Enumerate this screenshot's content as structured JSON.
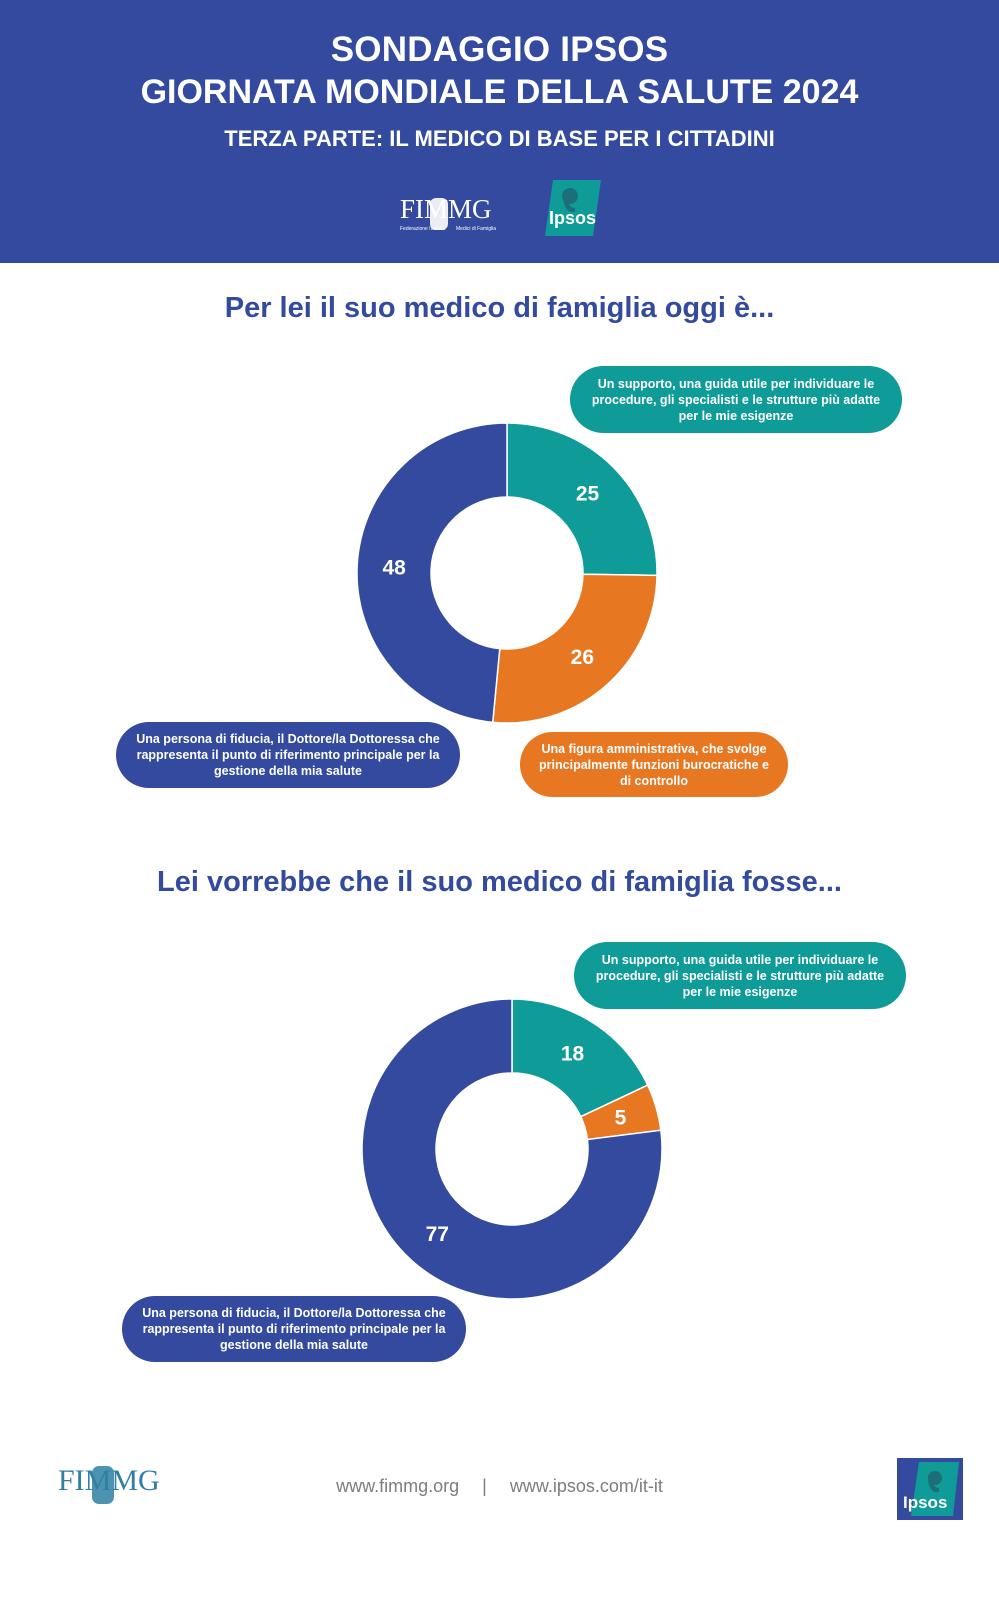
{
  "header": {
    "line1": "SONDAGGIO IPSOS",
    "line2": "GIORNATA MONDIALE DELLA SALUTE 2024",
    "line3": "TERZA PARTE: IL MEDICO DI BASE PER I CITTADINI",
    "fimmg_logo": "FIMMG",
    "fimmg_sub_left": "Federazione Italiana",
    "fimmg_sub_right": "Medici di Famiglia",
    "ipsos_logo": "Ipsos"
  },
  "colors": {
    "header_bg": "#334a9e",
    "blue": "#334a9e",
    "teal": "#0f9b98",
    "orange": "#e87722"
  },
  "section1": {
    "title": "Per lei il suo medico di famiglia oggi è...",
    "bubble_teal": "Un supporto, una guida utile per individuare le procedure, gli specialisti e le strutture più adatte per le mie esigenze",
    "bubble_blue": "Una persona di fiducia, il Dottore/la Dottoressa che rappresenta il punto di riferimento principale per la gestione della mia salute",
    "bubble_orange": "Una figura amministrativa, che svolge principalmente funzioni burocratiche e di controllo"
  },
  "section2": {
    "title": "Lei vorrebbe che il suo medico di famiglia fosse...",
    "bubble_teal": "Un supporto, una guida utile per individuare le procedure, gli specialisti e le strutture più adatte per le mie esigenze",
    "bubble_blue": "Una persona di fiducia, il Dottore/la Dottoressa che rappresenta il punto di riferimento principale per la gestione della mia salute"
  },
  "chart_data": [
    {
      "type": "pie",
      "title": "Per lei il suo medico di famiglia oggi è...",
      "categories": [
        "Un supporto, una guida utile per individuare le procedure, gli specialisti e le strutture più adatte per le mie esigenze",
        "Una figura amministrativa, che svolge principalmente funzioni burocratiche e di controllo",
        "Una persona di fiducia, il Dottore/la Dottoressa che rappresenta il punto di riferimento principale per la gestione della mia salute"
      ],
      "values": [
        25,
        26,
        48
      ],
      "colors": [
        "#0f9b98",
        "#e87722",
        "#334a9e"
      ]
    },
    {
      "type": "pie",
      "title": "Lei vorrebbe che il suo medico di famiglia fosse...",
      "categories": [
        "Un supporto, una guida utile per individuare le procedure, gli specialisti e le strutture più adatte per le mie esigenze",
        "Una figura amministrativa, che svolge principalmente funzioni burocratiche e di controllo",
        "Una persona di fiducia, il Dottore/la Dottoressa che rappresenta il punto di riferimento principale per la gestione della mia salute"
      ],
      "values": [
        18,
        5,
        77
      ],
      "colors": [
        "#0f9b98",
        "#e87722",
        "#334a9e"
      ]
    }
  ],
  "footer": {
    "url1": "www.fimmg.org",
    "separator": "|",
    "url2": "www.ipsos.com/it-it",
    "fimmg_logo": "FIMMG",
    "ipsos_logo": "Ipsos"
  }
}
